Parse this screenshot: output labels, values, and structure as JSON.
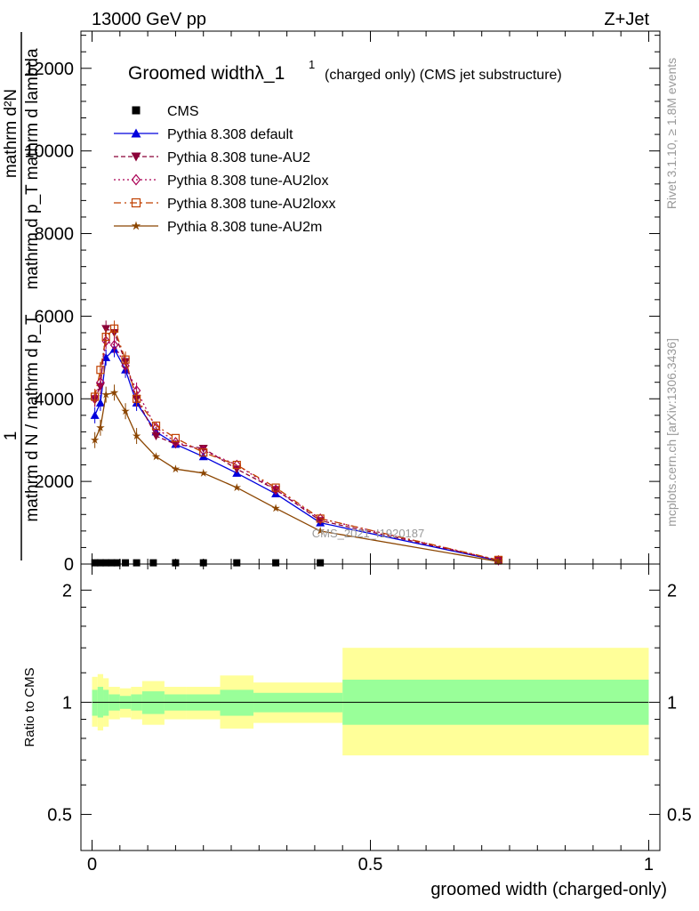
{
  "header": {
    "left": "13000 GeV pp",
    "right": "Z+Jet"
  },
  "side_labels": {
    "rivet": "Rivet 3.1.10, ≥ 1.8M events",
    "mcplots": "mcplots.cern.ch [arXiv:1306.3436]"
  },
  "watermark": "CMS_2021_I1920187",
  "colors": {
    "cms": "#000000",
    "default": "#0000dd",
    "au2": "#8b0038",
    "au2lox": "#aa0055",
    "au2loxx": "#c04000",
    "au2m": "#8b4500",
    "band_inner": "#99ff99",
    "band_outer": "#ffff99"
  },
  "chart_data": [
    {
      "type": "line",
      "title": "Groomed widthλ_1",
      "title_sup": "1",
      "title_note": "(charged only) (CMS jet substructure)",
      "ylabel_top": "mathrm d²N",
      "ylabel_top2": "mathrm d p_T mathrm d lambda",
      "ylabel_mid": "1",
      "ylabel_bottom": "mathrm d N / mathrm d p_T",
      "xlim": [
        -0.02,
        1.02
      ],
      "ylim": [
        0,
        12900
      ],
      "yticks": [
        0,
        2000,
        4000,
        6000,
        8000,
        10000,
        12000
      ],
      "ytick_labels": [
        "0",
        "2000",
        "4000",
        "6000",
        "8000",
        "10000",
        "12000"
      ],
      "legend_position": "top-left",
      "series": [
        {
          "name": "CMS",
          "key": "cms",
          "marker": "square",
          "dash": "",
          "x": [
            0.005,
            0.015,
            0.025,
            0.035,
            0.045,
            0.06,
            0.08,
            0.11,
            0.15,
            0.2,
            0.26,
            0.33,
            0.41
          ],
          "y": [
            30,
            30,
            30,
            30,
            30,
            30,
            30,
            30,
            30,
            30,
            30,
            30,
            30
          ]
        },
        {
          "name": "Pythia 8.308 default",
          "key": "default",
          "marker": "triangle",
          "dash": "",
          "x": [
            0.005,
            0.015,
            0.025,
            0.04,
            0.06,
            0.08,
            0.115,
            0.15,
            0.2,
            0.26,
            0.33,
            0.41,
            0.73
          ],
          "y": [
            3600,
            3900,
            5000,
            5200,
            4700,
            3900,
            3200,
            2900,
            2600,
            2200,
            1700,
            1000,
            80
          ]
        },
        {
          "name": "Pythia 8.308 tune-AU2",
          "key": "au2",
          "marker": "triangle-down",
          "dash": "5,3",
          "x": [
            0.005,
            0.015,
            0.025,
            0.04,
            0.06,
            0.08,
            0.115,
            0.15,
            0.2,
            0.26,
            0.33,
            0.41,
            0.73
          ],
          "y": [
            4000,
            4300,
            5700,
            5600,
            4900,
            4000,
            3100,
            2900,
            2800,
            2300,
            1800,
            1050,
            90
          ]
        },
        {
          "name": "Pythia 8.308 tune-AU2lox",
          "key": "au2lox",
          "marker": "diamond-open",
          "dash": "2,3",
          "x": [
            0.005,
            0.015,
            0.025,
            0.04,
            0.06,
            0.08,
            0.115,
            0.15,
            0.2,
            0.26,
            0.33,
            0.41,
            0.73
          ],
          "y": [
            4000,
            4400,
            5400,
            5300,
            4800,
            4200,
            3300,
            2950,
            2750,
            2400,
            1800,
            1100,
            90
          ]
        },
        {
          "name": "Pythia 8.308 tune-AU2loxx",
          "key": "au2loxx",
          "marker": "square-open",
          "dash": "8,4,2,4",
          "x": [
            0.005,
            0.015,
            0.025,
            0.04,
            0.06,
            0.08,
            0.115,
            0.15,
            0.2,
            0.26,
            0.33,
            0.41,
            0.73
          ],
          "y": [
            4050,
            4700,
            5500,
            5700,
            4950,
            4000,
            3350,
            3050,
            2700,
            2400,
            1850,
            1100,
            100
          ]
        },
        {
          "name": "Pythia 8.308 tune-AU2m",
          "key": "au2m",
          "marker": "star",
          "dash": "",
          "x": [
            0.005,
            0.015,
            0.025,
            0.04,
            0.06,
            0.08,
            0.115,
            0.15,
            0.2,
            0.26,
            0.33,
            0.41,
            0.73
          ],
          "y": [
            3000,
            3300,
            4100,
            4150,
            3700,
            3100,
            2600,
            2300,
            2200,
            1850,
            1350,
            800,
            60
          ]
        }
      ]
    },
    {
      "type": "area",
      "ylabel": "Ratio to CMS",
      "xlabel": "groomed width (charged-only)",
      "xlim": [
        -0.02,
        1.02
      ],
      "ylim": [
        0.4,
        2.35
      ],
      "log_scale_y": true,
      "yticks": [
        0.5,
        1,
        2
      ],
      "ytick_labels": [
        "0.5",
        "1",
        "2"
      ],
      "xticks": [
        0,
        0.5,
        1
      ],
      "xtick_labels": [
        "0",
        "0.5",
        "1"
      ],
      "reference_line": 1,
      "bins": [
        {
          "x0": 0.0,
          "x1": 0.01,
          "inner": [
            0.92,
            1.08
          ],
          "outer": [
            0.86,
            1.17
          ]
        },
        {
          "x0": 0.01,
          "x1": 0.02,
          "inner": [
            0.91,
            1.1
          ],
          "outer": [
            0.84,
            1.19
          ]
        },
        {
          "x0": 0.02,
          "x1": 0.03,
          "inner": [
            0.92,
            1.08
          ],
          "outer": [
            0.86,
            1.16
          ]
        },
        {
          "x0": 0.03,
          "x1": 0.05,
          "inner": [
            0.95,
            1.05
          ],
          "outer": [
            0.9,
            1.1
          ]
        },
        {
          "x0": 0.05,
          "x1": 0.07,
          "inner": [
            0.96,
            1.04
          ],
          "outer": [
            0.91,
            1.09
          ]
        },
        {
          "x0": 0.07,
          "x1": 0.09,
          "inner": [
            0.95,
            1.05
          ],
          "outer": [
            0.9,
            1.1
          ]
        },
        {
          "x0": 0.09,
          "x1": 0.13,
          "inner": [
            0.93,
            1.07
          ],
          "outer": [
            0.87,
            1.14
          ]
        },
        {
          "x0": 0.13,
          "x1": 0.17,
          "inner": [
            0.95,
            1.05
          ],
          "outer": [
            0.9,
            1.1
          ]
        },
        {
          "x0": 0.17,
          "x1": 0.23,
          "inner": [
            0.95,
            1.05
          ],
          "outer": [
            0.9,
            1.1
          ]
        },
        {
          "x0": 0.23,
          "x1": 0.29,
          "inner": [
            0.92,
            1.08
          ],
          "outer": [
            0.85,
            1.18
          ]
        },
        {
          "x0": 0.29,
          "x1": 0.45,
          "inner": [
            0.94,
            1.06
          ],
          "outer": [
            0.88,
            1.13
          ]
        },
        {
          "x0": 0.45,
          "x1": 1.0,
          "inner": [
            0.87,
            1.15
          ],
          "outer": [
            0.72,
            1.4
          ]
        }
      ]
    }
  ]
}
